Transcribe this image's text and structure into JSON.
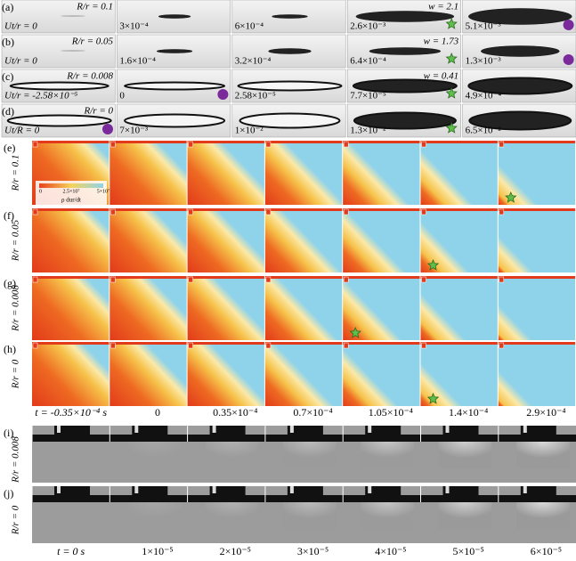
{
  "panels_top": [
    {
      "label": "(a)",
      "ratio": "R/r = 0.1",
      "w": "w = 2.1",
      "times": [
        "Ut/r = 0",
        "3×10⁻⁴",
        "6×10⁻⁴",
        "2.6×10⁻³",
        "5.1×10⁻³"
      ]
    },
    {
      "label": "(b)",
      "ratio": "R/r = 0.05",
      "w": "w = 1.73",
      "times": [
        "Ut/r = 0",
        "1.6×10⁻⁴",
        "3.2×10⁻⁴",
        "6.4×10⁻⁴",
        "1.3×10⁻³"
      ]
    },
    {
      "label": "(c)",
      "ratio": "R/r = 0.008",
      "w": "w = 0.41",
      "times": [
        "Ut/r = -2.58×10⁻⁵",
        "0",
        "2.58×10⁻⁵",
        "7.7×10⁻⁵",
        "4.9×10⁻⁴"
      ]
    },
    {
      "label": "(d)",
      "ratio": "R/r = 0",
      "times": [
        "Ut/R = 0",
        "7×10⁻³",
        "1×10⁻²",
        "1.3×10⁻²",
        "6.5×10⁻²"
      ]
    }
  ],
  "panels_middle": [
    {
      "label": "(e)",
      "ratio": "R/r = 0.1"
    },
    {
      "label": "(f)",
      "ratio": "R/r = 0.05"
    },
    {
      "label": "(g)",
      "ratio": "R/r = 0.008"
    },
    {
      "label": "(h)",
      "ratio": "R/r = 0"
    }
  ],
  "colorbar": {
    "ticks": [
      "0",
      "2.5×10⁷",
      "5×10⁷"
    ],
    "label": "ρ dur/dt"
  },
  "middle_times": [
    "t = -0.35×10⁻⁴ s",
    "0",
    "0.35×10⁻⁴",
    "0.7×10⁻⁴",
    "1.05×10⁻⁴",
    "1.4×10⁻⁴",
    "2.9×10⁻⁴"
  ],
  "panels_bottom": [
    {
      "label": "(i)",
      "ratio": "R/r = 0.008"
    },
    {
      "label": "(j)",
      "ratio": "R/r = 0"
    }
  ],
  "bottom_times": [
    "t = 0 s",
    "1×10⁻⁵",
    "2×10⁻⁵",
    "3×10⁻⁵",
    "4×10⁻⁵",
    "5×10⁻⁵",
    "6×10⁻⁵"
  ]
}
